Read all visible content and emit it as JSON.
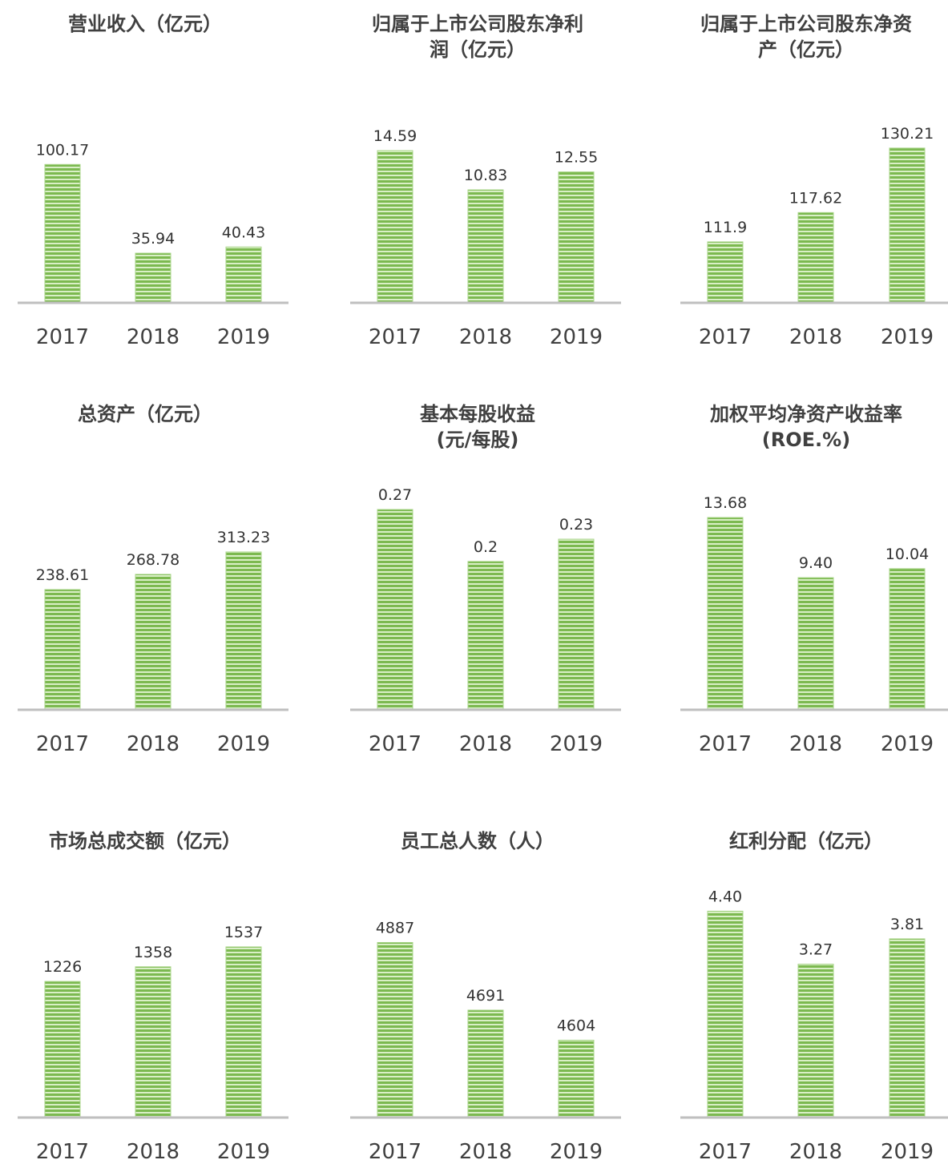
{
  "chart_data": [
    {
      "type": "bar",
      "title": [
        "营业收入（亿元）"
      ],
      "categories": [
        "2017",
        "2018",
        "2019"
      ],
      "values": [
        100.17,
        35.94,
        40.43
      ],
      "color": "#7cb950",
      "ylim": [
        0,
        145
      ]
    },
    {
      "type": "bar",
      "title": [
        "归属于上市公司股东净利",
        "润（亿元）"
      ],
      "categories": [
        "2017",
        "2018",
        "2019"
      ],
      "values": [
        14.59,
        10.83,
        12.55
      ],
      "color": "#7cb950",
      "ylim": [
        0,
        19.2
      ]
    },
    {
      "type": "bar",
      "title": [
        "归属于上市公司股东净资",
        "产（亿元）"
      ],
      "categories": [
        "2017",
        "2018",
        "2019"
      ],
      "values": [
        111.9,
        117.62,
        130.21
      ],
      "color": "#7cb950",
      "ylim": [
        100,
        139.1
      ]
    },
    {
      "type": "bar",
      "title": [
        "总资产（亿元）"
      ],
      "categories": [
        "2017",
        "2018",
        "2019"
      ],
      "values": [
        238.61,
        268.78,
        313.23
      ],
      "color": "#7cb950",
      "ylim": [
        0,
        397.5
      ]
    },
    {
      "type": "bar",
      "title": [
        "基本每股收益",
        "(元/每股)"
      ],
      "categories": [
        "2017",
        "2018",
        "2019"
      ],
      "values": [
        0.27,
        0.2,
        0.23
      ],
      "color": "#7cb950",
      "ylim": [
        0,
        0.27
      ]
    },
    {
      "type": "bar",
      "title": [
        "加权平均净资产收益率",
        "(ROE.%)"
      ],
      "categories": [
        "2017",
        "2018",
        "2019"
      ],
      "values": [
        13.68,
        9.4,
        10.04
      ],
      "value_labels": [
        "13.68",
        "9.40",
        "10.04"
      ],
      "color": "#7cb950",
      "ylim": [
        0,
        14.25
      ]
    },
    {
      "type": "bar",
      "title": [
        "市场总成交额（亿元）"
      ],
      "categories": [
        "2017",
        "2018",
        "2019"
      ],
      "values": [
        1226,
        1358,
        1537
      ],
      "color": "#7cb950",
      "ylim": [
        0,
        1804
      ]
    },
    {
      "type": "bar",
      "title": [
        "员工总人数（人）"
      ],
      "categories": [
        "2017",
        "2018",
        "2019"
      ],
      "values": [
        4887,
        4691,
        4604
      ],
      "color": "#7cb950",
      "ylim": [
        4380,
        4960
      ]
    },
    {
      "type": "bar",
      "title": [
        "红利分配（亿元）"
      ],
      "categories": [
        "2017",
        "2018",
        "2019"
      ],
      "values": [
        4.4,
        3.27,
        3.81
      ],
      "value_labels": [
        "4.40",
        "3.27",
        "3.81"
      ],
      "color": "#7cb950",
      "ylim": [
        0,
        4.27
      ]
    }
  ]
}
